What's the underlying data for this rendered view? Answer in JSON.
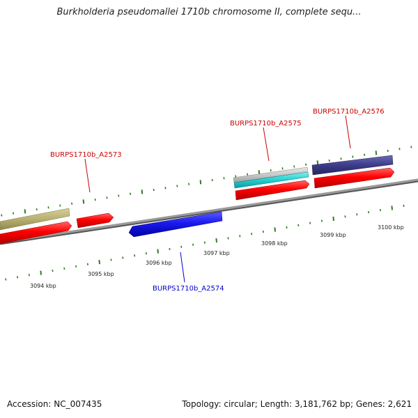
{
  "title": "Burkholderia pseudomallei 1710b chromosome II, complete sequ...",
  "footer": {
    "accession": "Accession: NC_007435",
    "summary": "Topology: circular; Length: 3,181,762 bp; Genes: 2,621"
  },
  "ticks": [
    "3094 kbp",
    "3095 kbp",
    "3096 kbp",
    "3097 kbp",
    "3098 kbp",
    "3099 kbp",
    "3100 kbp"
  ],
  "genes": [
    {
      "id": "g2573",
      "label": "BURPS1710b_A2573",
      "color": "#cc0000"
    },
    {
      "id": "g2574",
      "label": "BURPS1710b_A2574",
      "color": "#0000cc"
    },
    {
      "id": "g2575",
      "label": "BURPS1710b_A2575",
      "color": "#cc0000"
    },
    {
      "id": "g2576",
      "label": "BURPS1710b_A2576",
      "color": "#cc0000"
    }
  ],
  "colors": {
    "backbone": "#8a8a8a",
    "tick_mark": "#2e7d1e",
    "cds_red": "#ff0000",
    "cds_blue": "#1a1aee",
    "gene_olive": "#b8b070",
    "gene_gray": "#c8c8c8",
    "gene_cyan": "#20d0d0",
    "gene_navy": "#3c3c8a"
  }
}
